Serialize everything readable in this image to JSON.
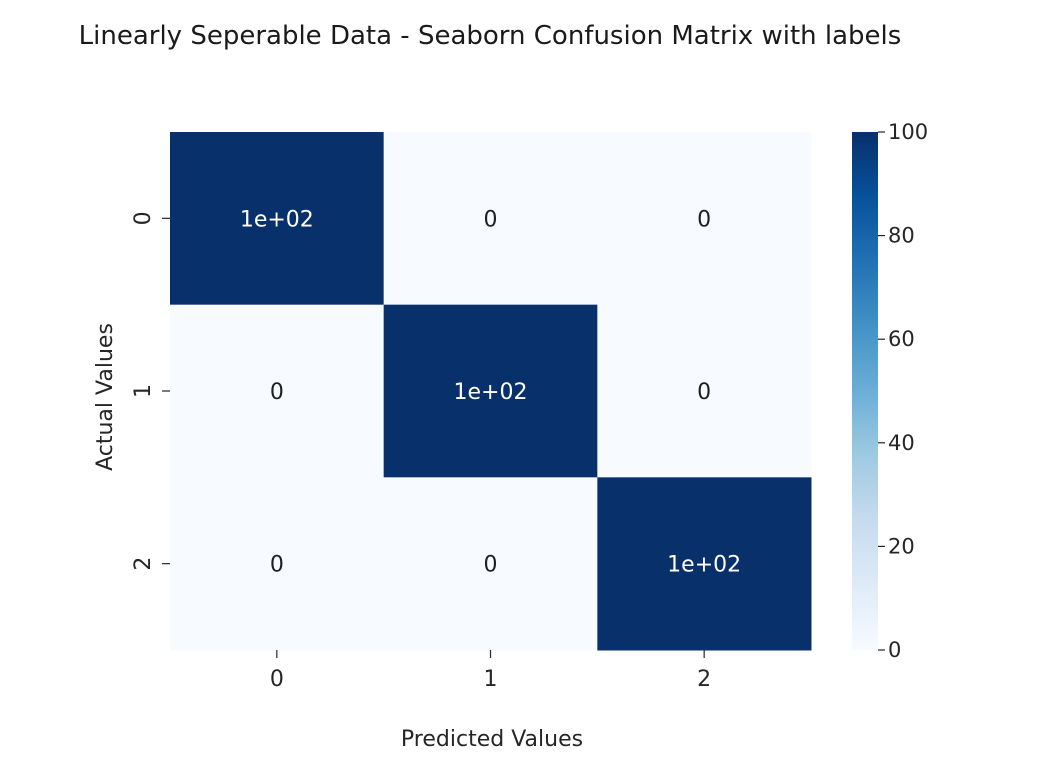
{
  "chart_data": {
    "type": "heatmap",
    "title": "Linearly Seperable Data - Seaborn Confusion Matrix with labels",
    "xlabel": "Predicted Values",
    "ylabel": "Actual Values",
    "x_ticks": [
      "0",
      "1",
      "2"
    ],
    "y_ticks": [
      "0",
      "1",
      "2"
    ],
    "values": [
      [
        100,
        0,
        0
      ],
      [
        0,
        100,
        0
      ],
      [
        0,
        0,
        100
      ]
    ],
    "annotations": [
      [
        "1e+02",
        "0",
        "0"
      ],
      [
        "0",
        "1e+02",
        "0"
      ],
      [
        "0",
        "0",
        "1e+02"
      ]
    ],
    "colorbar": {
      "colormap": "Blues",
      "range": [
        0,
        100
      ],
      "ticks": [
        "0",
        "20",
        "40",
        "60",
        "80",
        "100"
      ],
      "low_color": "#f7fbff",
      "high_color": "#08306b"
    },
    "grid": false,
    "legend": "colorbar-right"
  },
  "colors": {
    "text": "#262626",
    "annotation_dark": "#1f1f1f",
    "annotation_light": "#ffffff"
  }
}
